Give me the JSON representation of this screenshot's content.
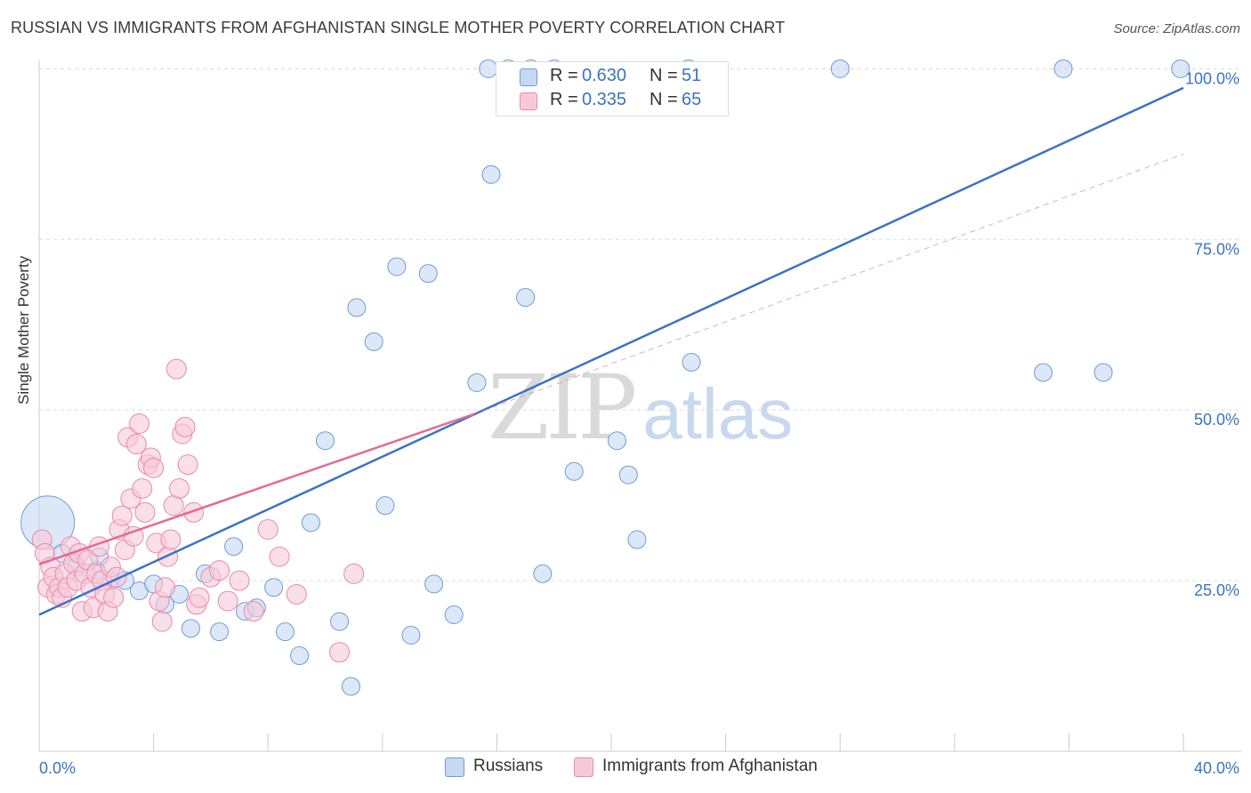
{
  "title": "RUSSIAN VS IMMIGRANTS FROM AFGHANISTAN SINGLE MOTHER POVERTY CORRELATION CHART",
  "source": "Source: ZipAtlas.com",
  "watermark": {
    "zip": "ZIP",
    "atlas": "atlas"
  },
  "colors": {
    "blue": "#3b73c4",
    "blue_fill": "#c5d9f3",
    "blue_stroke": "#6e9bd6",
    "pink": "#e46a93",
    "pink_fill": "#f7c9d8",
    "pink_stroke": "#e98aa9",
    "grid": "#dcdcdc",
    "axis": "#cccccc",
    "tick_label": "#3b73c4"
  },
  "legend": {
    "rows": [
      {
        "r_label": "R =",
        "r_value": "0.630",
        "n_label": "N =",
        "n_value": "51",
        "color": "blue"
      },
      {
        "r_label": "R =",
        "r_value": "0.335",
        "n_label": "N =",
        "n_value": "65",
        "color": "pink"
      }
    ]
  },
  "chart_data": {
    "type": "scatter",
    "title": "RUSSIAN VS IMMIGRANTS FROM AFGHANISTAN SINGLE MOTHER POVERTY CORRELATION CHART",
    "xlabel": "",
    "ylabel": "Single Mother Poverty",
    "xlim": [
      0,
      40
    ],
    "ylim": [
      0,
      102
    ],
    "x_tick_labels": [
      "0.0%",
      "40.0%"
    ],
    "y_ticks": [
      25,
      50,
      75,
      100
    ],
    "y_tick_labels": [
      "25.0%",
      "50.0%",
      "75.0%",
      "100.0%"
    ],
    "grid": true,
    "legend_position": "bottom",
    "series": [
      {
        "name": "Russians",
        "color": "blue",
        "r": 0.63,
        "n": 51,
        "trend": {
          "x0": 0,
          "y0": 20.0,
          "x1": 40,
          "y1": 97.2,
          "dashed_to": null
        },
        "points": [
          [
            0.3,
            33.5,
            30
          ],
          [
            0.8,
            29,
            10
          ],
          [
            1.3,
            27,
            10
          ],
          [
            2.0,
            26.5,
            10
          ],
          [
            2.1,
            28.5,
            10
          ],
          [
            2.5,
            25,
            10
          ],
          [
            3.0,
            25,
            10
          ],
          [
            3.5,
            23.5,
            10
          ],
          [
            4.0,
            24.5,
            10
          ],
          [
            4.4,
            21.5,
            10
          ],
          [
            4.9,
            23,
            10
          ],
          [
            5.3,
            18,
            10
          ],
          [
            5.8,
            26,
            10
          ],
          [
            6.3,
            17.5,
            10
          ],
          [
            6.8,
            30,
            10
          ],
          [
            7.2,
            20.5,
            10
          ],
          [
            7.6,
            21,
            10
          ],
          [
            8.2,
            24,
            10
          ],
          [
            8.6,
            17.5,
            10
          ],
          [
            9.1,
            14,
            10
          ],
          [
            9.5,
            33.5,
            10
          ],
          [
            10.0,
            45.5,
            10
          ],
          [
            10.5,
            19,
            10
          ],
          [
            10.9,
            9.5,
            10
          ],
          [
            11.1,
            65,
            10
          ],
          [
            11.7,
            60,
            10
          ],
          [
            12.1,
            36,
            10
          ],
          [
            12.5,
            71,
            10
          ],
          [
            13.0,
            17,
            10
          ],
          [
            13.6,
            70,
            10
          ],
          [
            13.8,
            24.5,
            10
          ],
          [
            14.5,
            20,
            10
          ],
          [
            15.3,
            54,
            10
          ],
          [
            15.7,
            100,
            10
          ],
          [
            15.8,
            84.5,
            10
          ],
          [
            16.4,
            100,
            10
          ],
          [
            17.0,
            66.5,
            10
          ],
          [
            17.2,
            100,
            10
          ],
          [
            17.6,
            26,
            10
          ],
          [
            18.0,
            100,
            10
          ],
          [
            18.7,
            41,
            10
          ],
          [
            20.2,
            45.5,
            10
          ],
          [
            20.6,
            40.5,
            10
          ],
          [
            20.9,
            31,
            10
          ],
          [
            22.7,
            100,
            10
          ],
          [
            22.8,
            57,
            10
          ],
          [
            28.0,
            100,
            10
          ],
          [
            35.1,
            55.5,
            10
          ],
          [
            37.2,
            55.5,
            10
          ],
          [
            35.8,
            100,
            10
          ],
          [
            39.9,
            100,
            10
          ]
        ]
      },
      {
        "name": "Immigrants from Afghanistan",
        "color": "pink",
        "r": 0.335,
        "n": 65,
        "trend": {
          "x0": 0,
          "y0": 27.4,
          "x1": 15.2,
          "y1": 49.4,
          "dashed_to": {
            "x": 40,
            "y": 87.5
          }
        },
        "points": [
          [
            0.1,
            31,
            11
          ],
          [
            0.2,
            29,
            11
          ],
          [
            0.3,
            24,
            11
          ],
          [
            0.4,
            27,
            11
          ],
          [
            0.5,
            25.5,
            11
          ],
          [
            0.6,
            23,
            11
          ],
          [
            0.7,
            24,
            11
          ],
          [
            0.8,
            22.5,
            11
          ],
          [
            0.9,
            26,
            11
          ],
          [
            1.0,
            24,
            11
          ],
          [
            1.1,
            30,
            11
          ],
          [
            1.2,
            27.5,
            11
          ],
          [
            1.3,
            25,
            11
          ],
          [
            1.4,
            29,
            11
          ],
          [
            1.5,
            20.5,
            11
          ],
          [
            1.6,
            26,
            11
          ],
          [
            1.7,
            28,
            11
          ],
          [
            1.8,
            24,
            11
          ],
          [
            1.9,
            21,
            11
          ],
          [
            2.0,
            26,
            11
          ],
          [
            2.1,
            30,
            11
          ],
          [
            2.2,
            25,
            11
          ],
          [
            2.3,
            23,
            11
          ],
          [
            2.4,
            20.5,
            11
          ],
          [
            2.5,
            27,
            11
          ],
          [
            2.6,
            22.5,
            11
          ],
          [
            2.7,
            25.5,
            11
          ],
          [
            2.8,
            32.5,
            11
          ],
          [
            2.9,
            34.5,
            11
          ],
          [
            3.0,
            29.5,
            11
          ],
          [
            3.1,
            46,
            11
          ],
          [
            3.2,
            37,
            11
          ],
          [
            3.3,
            31.5,
            11
          ],
          [
            3.4,
            45,
            11
          ],
          [
            3.5,
            48,
            11
          ],
          [
            3.6,
            38.5,
            11
          ],
          [
            3.7,
            35,
            11
          ],
          [
            3.8,
            42,
            11
          ],
          [
            3.9,
            43,
            11
          ],
          [
            4.0,
            41.5,
            11
          ],
          [
            4.1,
            30.5,
            11
          ],
          [
            4.2,
            22,
            11
          ],
          [
            4.3,
            19,
            11
          ],
          [
            4.4,
            24,
            11
          ],
          [
            4.5,
            28.5,
            11
          ],
          [
            4.6,
            31,
            11
          ],
          [
            4.7,
            36,
            11
          ],
          [
            4.8,
            56,
            11
          ],
          [
            4.9,
            38.5,
            11
          ],
          [
            5.0,
            46.5,
            11
          ],
          [
            5.1,
            47.5,
            11
          ],
          [
            5.2,
            42,
            11
          ],
          [
            5.4,
            35,
            11
          ],
          [
            5.5,
            21.5,
            11
          ],
          [
            5.6,
            22.5,
            11
          ],
          [
            6.0,
            25.5,
            11
          ],
          [
            6.3,
            26.5,
            11
          ],
          [
            6.6,
            22,
            11
          ],
          [
            7.0,
            25,
            11
          ],
          [
            7.5,
            20.5,
            11
          ],
          [
            8.0,
            32.5,
            11
          ],
          [
            8.4,
            28.5,
            11
          ],
          [
            9.0,
            23,
            11
          ],
          [
            10.5,
            14.5,
            11
          ],
          [
            11.0,
            26,
            11
          ]
        ]
      }
    ]
  },
  "axes": {
    "x_left_label": "0.0%",
    "x_right_label": "40.0%",
    "y_label": "Single Mother Poverty"
  }
}
